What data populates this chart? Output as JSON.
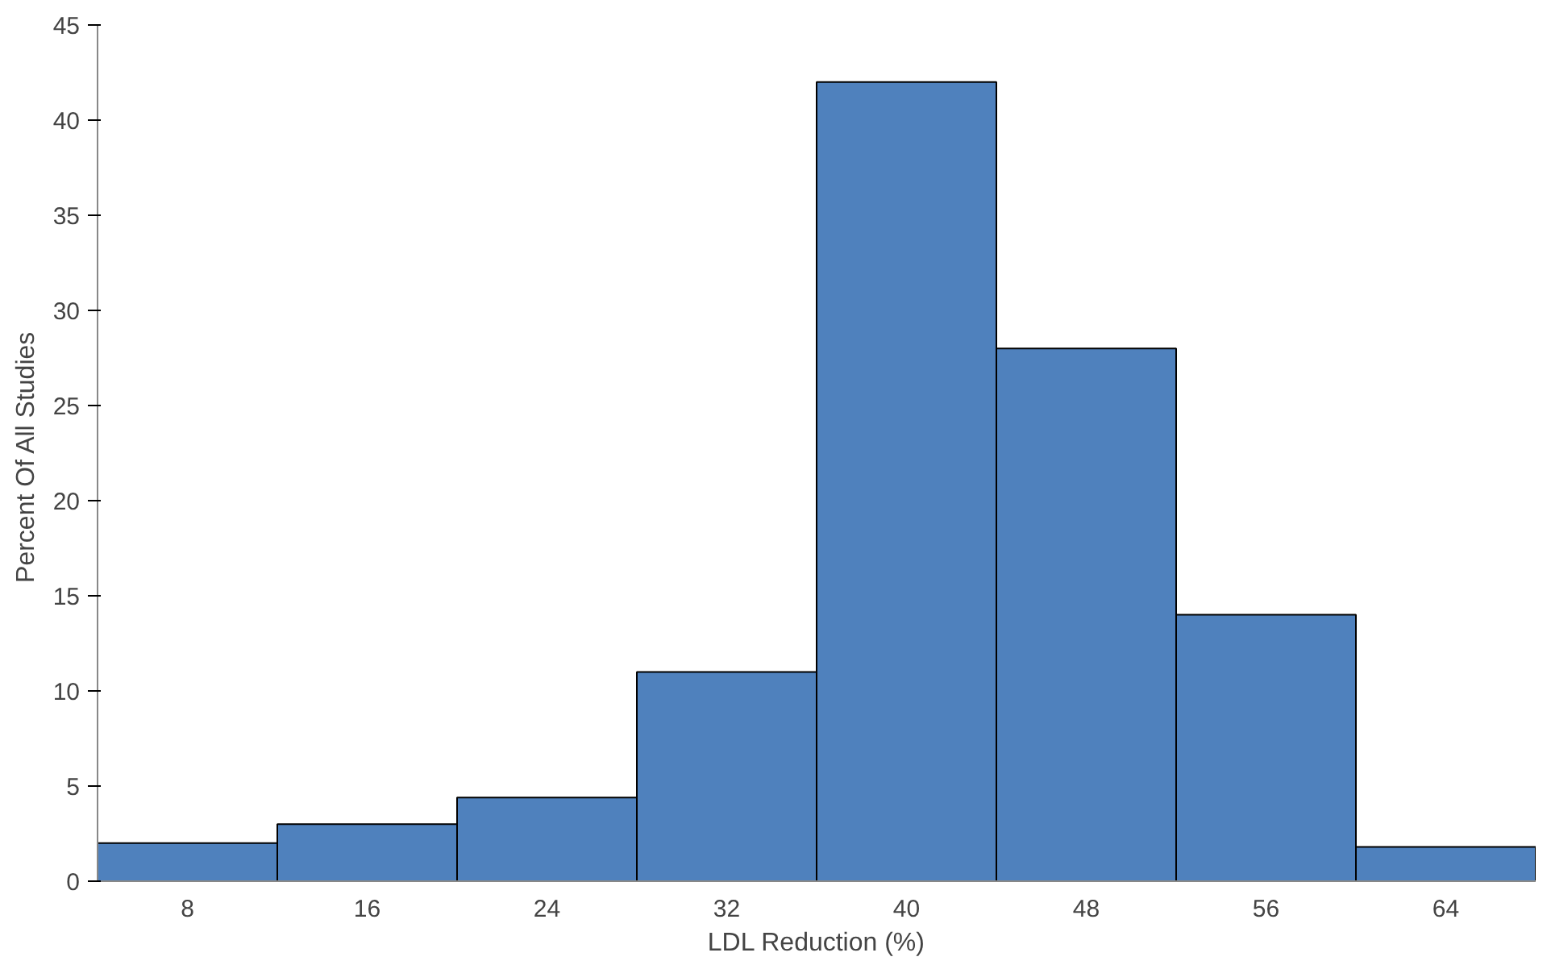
{
  "chart_data": {
    "type": "histogram",
    "xlabel": "LDL Reduction (%)",
    "ylabel": "Percent  Of All Studies",
    "bins": [
      4,
      12,
      20,
      28,
      36,
      44,
      52,
      60,
      68
    ],
    "values": [
      2,
      3,
      4.4,
      11,
      42,
      28,
      14,
      1.8
    ],
    "color": "#4f81bd",
    "xlim": [
      4,
      68
    ],
    "xticks": [
      8,
      16,
      24,
      32,
      40,
      48,
      56,
      64
    ],
    "ylim": [
      0,
      45
    ],
    "yticks": [
      0,
      5,
      10,
      15,
      20,
      25,
      30,
      35,
      40,
      45
    ],
    "grid": false
  }
}
